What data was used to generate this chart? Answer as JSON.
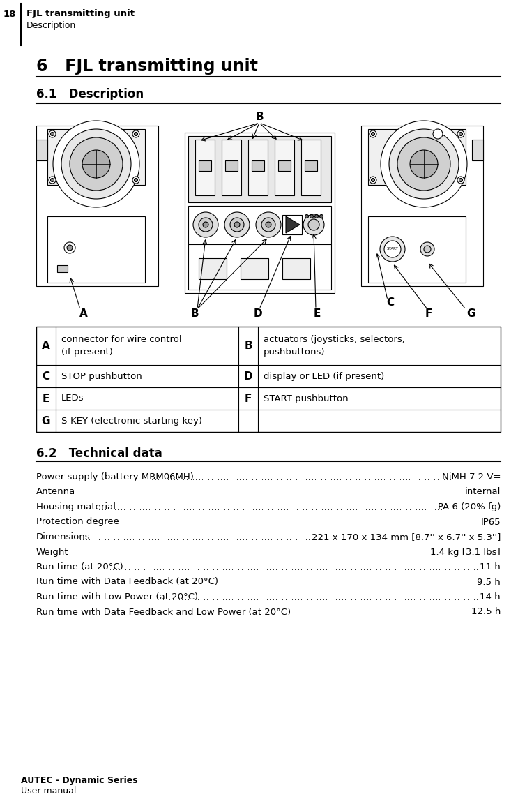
{
  "page_number": "18",
  "header_title": "FJL transmitting unit",
  "header_subtitle": "Description",
  "chapter_title": "6   FJL transmitting unit",
  "section1_title": "6.1   Description",
  "section2_title": "6.2   Technical data",
  "footer_brand": "AUTEC - Dynamic Series",
  "footer_sub": "User manual",
  "table_data": [
    [
      "A",
      "connector for wire control\n(if present)",
      "B",
      "actuators (joysticks, selectors,\npushbuttons)"
    ],
    [
      "C",
      "STOP pushbutton",
      "D",
      "display or LED (if present)"
    ],
    [
      "E",
      "LEDs",
      "F",
      "START pushbutton"
    ],
    [
      "G",
      "S-KEY (electronic starting key)",
      "",
      ""
    ]
  ],
  "tech_data": [
    [
      "Power supply (battery MBM06MH)",
      "NiMH 7.2 V="
    ],
    [
      "Antenna",
      "internal"
    ],
    [
      "Housing material",
      "PA 6 (20% fg)"
    ],
    [
      "Protection degree",
      "IP65"
    ],
    [
      "Dimensions",
      "221 x 170 x 134 mm [8.7'' x 6.7'' x 5.3'']"
    ],
    [
      "Weight",
      "1.4 kg [3.1 lbs]"
    ],
    [
      "Run time (at 20°C)",
      "11 h"
    ],
    [
      "Run time with Data Feedback (at 20°C)",
      "9.5 h"
    ],
    [
      "Run time with Low Power (at 20°C)",
      "14 h"
    ],
    [
      "Run time with Data Feedback and Low Power (at 20°C)",
      "12.5 h"
    ]
  ],
  "bg_color": "#ffffff",
  "text_color": "#000000"
}
